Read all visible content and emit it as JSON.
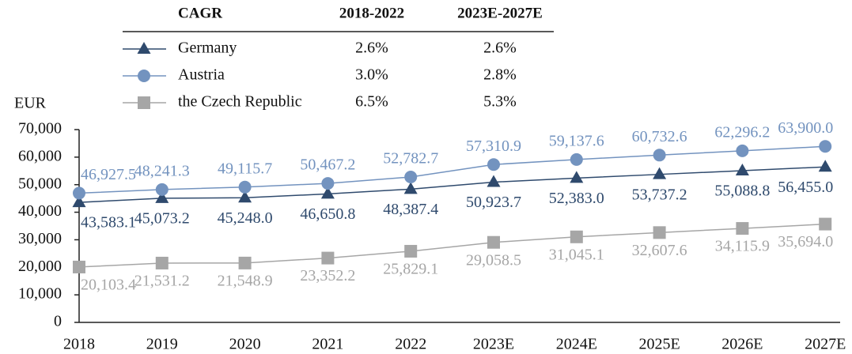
{
  "chart_data": {
    "type": "line",
    "y_label": "EUR",
    "categories": [
      "2018",
      "2019",
      "2020",
      "2021",
      "2022",
      "2023E",
      "2024E",
      "2025E",
      "2026E",
      "2027E"
    ],
    "ylim": [
      0,
      70000
    ],
    "yticks": [
      0,
      {
        "value": 10000,
        "label": "10,000"
      },
      {
        "value": 20000,
        "label": "20,000"
      },
      {
        "value": 30000,
        "label": "30,000"
      },
      {
        "value": 40000,
        "label": "40,000"
      },
      {
        "value": 50000,
        "label": "50,000"
      },
      {
        "value": 60000,
        "label": "60,000"
      },
      {
        "value": 70000,
        "label": "70,000"
      }
    ],
    "series": [
      {
        "name": "Germany",
        "color": "#2f4a6d",
        "marker": "triangle",
        "values": [
          43583.1,
          45073.2,
          45248.0,
          46650.8,
          48387.4,
          50923.7,
          52383.0,
          53737.2,
          55088.8,
          56455.0
        ],
        "value_labels": [
          "43,583.1",
          "45,073.2",
          "45,248.0",
          "46,650.8",
          "48,387.4",
          "50,923.7",
          "52,383.0",
          "53,737.2",
          "55,088.8",
          "56,455.0"
        ]
      },
      {
        "name": "Austria",
        "color": "#7393bf",
        "marker": "circle",
        "values": [
          46927.5,
          48241.3,
          49115.7,
          50467.2,
          52782.7,
          57310.9,
          59137.6,
          60732.6,
          62296.2,
          63900.0
        ],
        "value_labels": [
          "46,927.5",
          "48,241.3",
          "49,115.7",
          "50,467.2",
          "52,782.7",
          "57,310.9",
          "59,137.6",
          "60,732.6",
          "62,296.2",
          "63,900.0"
        ]
      },
      {
        "name": "the Czech Republic",
        "color": "#a6a6a6",
        "marker": "square",
        "values": [
          20103.4,
          21531.2,
          21548.9,
          23352.2,
          25829.1,
          29058.5,
          31045.1,
          32607.6,
          34115.9,
          35694.0
        ],
        "value_labels": [
          "20,103.4",
          "21,531.2",
          "21,548.9",
          "23,352.2",
          "25,829.1",
          "29,058.5",
          "31,045.1",
          "32,607.6",
          "34,115.9",
          "35,694.0"
        ]
      }
    ],
    "cagr_table": {
      "columns": [
        "CAGR",
        "2018-2022",
        "2023E-2027E"
      ],
      "rows": [
        [
          "2.6%",
          "2.6%"
        ],
        [
          "3.0%",
          "2.8%"
        ],
        [
          "6.5%",
          "5.3%"
        ]
      ]
    }
  }
}
